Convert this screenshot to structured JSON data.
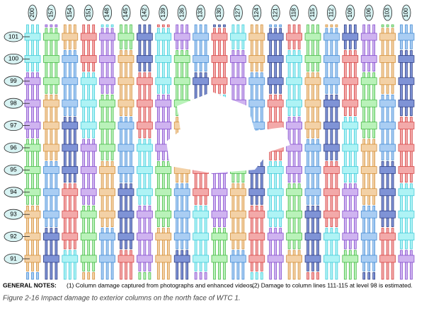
{
  "column_labels": [
    "200",
    "157",
    "154",
    "151",
    "148",
    "145",
    "142",
    "139",
    "136",
    "133",
    "130",
    "127",
    "124",
    "121",
    "118",
    "115",
    "112",
    "109",
    "106",
    "103",
    "100"
  ],
  "floor_labels": [
    "101",
    "100",
    "99",
    "98",
    "97",
    "96",
    "95",
    "94",
    "93",
    "92",
    "91"
  ],
  "notes": {
    "heading": "GENERAL NOTES:",
    "note1": "(1) Column damage captured from photographs and enhanced videos.",
    "note2": "(2) Damage to column lines 111-115 at level 98 is estimated."
  },
  "caption": "Figure 2-16  Impact damage to exterior columns on the north face of WTC 1."
}
